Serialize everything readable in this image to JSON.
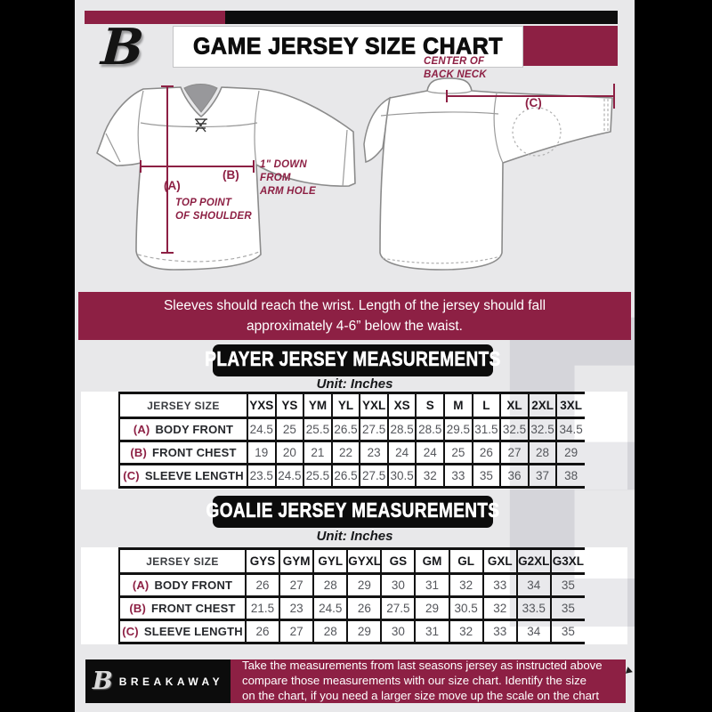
{
  "header": {
    "title": "GAME JERSEY SIZE CHART",
    "logo_letter": "B"
  },
  "diagrams": {
    "front": {
      "marker_a": "(A)",
      "marker_a_note": "TOP POINT\nOF SHOULDER",
      "marker_b": "(B)",
      "marker_b_note": "1\" DOWN\nFROM\nARM HOLE"
    },
    "back": {
      "marker_c": "(C)",
      "marker_c_note": "CENTER OF\nBACK NECK"
    }
  },
  "banner": {
    "text": "Sleeves should reach the wrist. Length of the jersey should fall\napproximately 4-6” below the waist."
  },
  "player_section": {
    "title": "PLAYER JERSEY MEASUREMENTS",
    "unit": "Unit: Inches",
    "table": {
      "size_header_label": "JERSEY SIZE",
      "sizes": [
        "YXS",
        "YS",
        "YM",
        "YL",
        "YXL",
        "XS",
        "S",
        "M",
        "L",
        "XL",
        "2XL",
        "3XL"
      ],
      "rows": [
        {
          "marker": "(A)",
          "label": "BODY FRONT",
          "values": [
            "24.5",
            "25",
            "25.5",
            "26.5",
            "27.5",
            "28.5",
            "28.5",
            "29.5",
            "31.5",
            "32.5",
            "32.5",
            "34.5"
          ]
        },
        {
          "marker": "(B)",
          "label": "FRONT CHEST",
          "values": [
            "19",
            "20",
            "21",
            "22",
            "23",
            "24",
            "24",
            "25",
            "26",
            "27",
            "28",
            "29"
          ]
        },
        {
          "marker": "(C)",
          "label": "SLEEVE LENGTH",
          "values": [
            "23.5",
            "24.5",
            "25.5",
            "26.5",
            "27.5",
            "30.5",
            "32",
            "33",
            "35",
            "36",
            "37",
            "38"
          ]
        }
      ]
    }
  },
  "goalie_section": {
    "title": "GOALIE JERSEY MEASUREMENTS",
    "unit": "Unit: Inches",
    "table": {
      "size_header_label": "JERSEY SIZE",
      "sizes": [
        "GYS",
        "GYM",
        "GYL",
        "GYXL",
        "GS",
        "GM",
        "GL",
        "GXL",
        "G2XL",
        "G3XL"
      ],
      "rows": [
        {
          "marker": "(A)",
          "label": "BODY FRONT",
          "values": [
            "26",
            "27",
            "28",
            "29",
            "30",
            "31",
            "32",
            "33",
            "34",
            "35"
          ]
        },
        {
          "marker": "(B)",
          "label": "FRONT CHEST",
          "values": [
            "21.5",
            "23",
            "24.5",
            "26",
            "27.5",
            "29",
            "30.5",
            "32",
            "33.5",
            "35"
          ]
        },
        {
          "marker": "(C)",
          "label": "SLEEVE LENGTH",
          "values": [
            "26",
            "27",
            "28",
            "29",
            "30",
            "31",
            "32",
            "33",
            "34",
            "35"
          ]
        }
      ]
    }
  },
  "footer": {
    "logo_letter": "B",
    "brand": "BREAKAWAY",
    "note": "Take the measurements from last seasons jersey as instructed above\ncompare those measurements  with our size chart. Identify the size\non the chart, if you need a larger size move up the scale on the chart"
  },
  "watermark_letter": "B",
  "colors": {
    "maroon": "#8d2044",
    "background": "#e8e8ea",
    "black": "#0d0d0d"
  }
}
